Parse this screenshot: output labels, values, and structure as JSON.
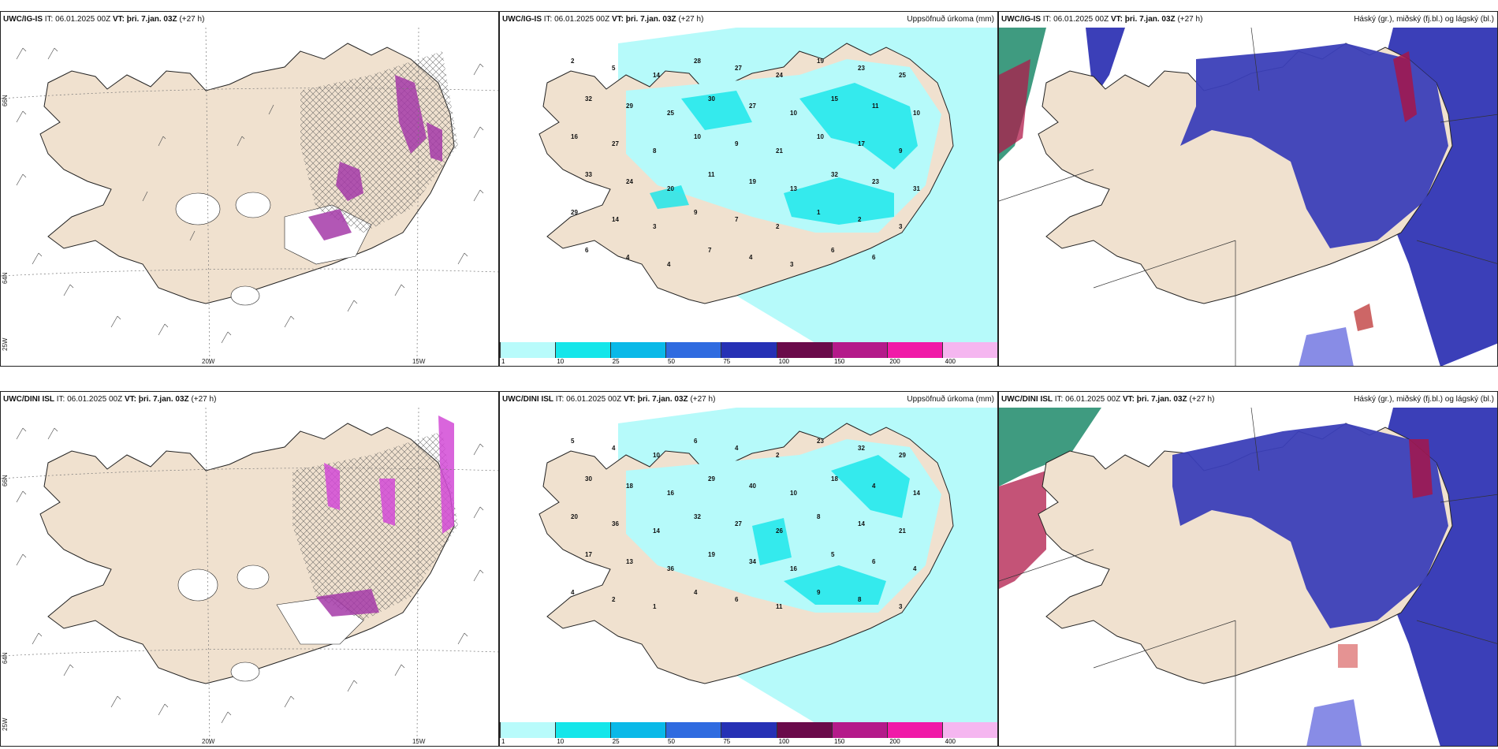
{
  "rows": [
    {
      "panels": [
        {
          "model": "UWC/IG-IS",
          "it": "IT: 06.01.2025 00Z",
          "vt": "VT: þri. 7.jan. 03Z",
          "lead": "(+27 h)",
          "title": "",
          "kind": "wind"
        },
        {
          "model": "UWC/IG-IS",
          "it": "IT: 06.01.2025 00Z",
          "vt": "VT: þri. 7.jan. 03Z",
          "lead": "(+27 h)",
          "title": "Uppsöfnuð úrkoma (mm)",
          "kind": "precip"
        },
        {
          "model": "UWC/IG-IS",
          "it": "IT: 06.01.2025 00Z",
          "vt": "VT: þri. 7.jan. 03Z",
          "lead": "(+27 h)",
          "title": "Háský (gr.), miðský (fj.bl.) og lágský (bl.)",
          "kind": "cloud"
        }
      ]
    },
    {
      "panels": [
        {
          "model": "UWC/DINI ISL",
          "it": "IT: 06.01.2025 00Z",
          "vt": "VT: þri. 7.jan. 03Z",
          "lead": "(+27 h)",
          "title": "",
          "kind": "wind"
        },
        {
          "model": "UWC/DINI ISL",
          "it": "IT: 06.01.2025 00Z",
          "vt": "VT: þri. 7.jan. 03Z",
          "lead": "(+27 h)",
          "title": "Uppsöfnuð úrkoma (mm)",
          "kind": "precip"
        },
        {
          "model": "UWC/DINI ISL",
          "it": "IT: 06.01.2025 00Z",
          "vt": "VT: þri. 7.jan. 03Z",
          "lead": "(+27 h)",
          "title": "Háský (gr.), miðský (fj.bl.) og lágský (bl.)",
          "kind": "cloud"
        }
      ]
    }
  ],
  "map_labels": {
    "lat_66": "66N",
    "lat_64": "64N",
    "lon_20w": "20W",
    "lon_15w": "15W",
    "lon_25w": "25W"
  },
  "precip_legend": {
    "values": [
      "1",
      "10",
      "25",
      "50",
      "75",
      "100",
      "150",
      "200",
      "400"
    ],
    "colors": [
      "#b8fbfb",
      "#14e6ea",
      "#0ab9e8",
      "#2f6be0",
      "#2631b5",
      "#6a0a4a",
      "#b41a8a",
      "#f01aa8",
      "#f5b6f0"
    ]
  },
  "precip_values_top": [
    "2",
    "5",
    "14",
    "28",
    "27",
    "24",
    "19",
    "23",
    "25",
    "32",
    "29",
    "25",
    "30",
    "27",
    "10",
    "15",
    "11",
    "10",
    "16",
    "27",
    "8",
    "10",
    "9",
    "21",
    "10",
    "17",
    "9",
    "33",
    "24",
    "20",
    "11",
    "19",
    "13",
    "32",
    "23",
    "31",
    "29",
    "14",
    "3",
    "9",
    "7",
    "2",
    "1",
    "2",
    "3",
    "6",
    "4",
    "4",
    "7",
    "4",
    "3",
    "6",
    "6"
  ],
  "precip_values_bottom": [
    "5",
    "4",
    "10",
    "6",
    "4",
    "2",
    "23",
    "32",
    "29",
    "30",
    "18",
    "16",
    "29",
    "40",
    "10",
    "18",
    "4",
    "14",
    "20",
    "36",
    "14",
    "32",
    "27",
    "26",
    "8",
    "14",
    "21",
    "17",
    "13",
    "36",
    "19",
    "34",
    "16",
    "5",
    "6",
    "4",
    "4",
    "2",
    "1",
    "4",
    "6",
    "11",
    "9",
    "8",
    "3"
  ],
  "colors": {
    "land": "#f0e1cf",
    "sea_precip": "#b6fafa",
    "cloud_high": "#3b3fb8",
    "cloud_mid": "#7a82e0",
    "cloud_low_edge": "#9fc5ff",
    "wind_precip": "#a43aa8",
    "hatch": "#666666"
  }
}
